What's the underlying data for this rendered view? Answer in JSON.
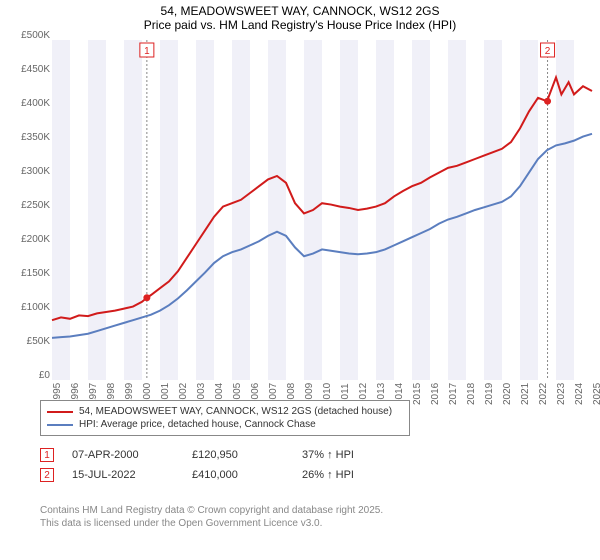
{
  "title": "54, MEADOWSWEET WAY, CANNOCK, WS12 2GS",
  "subtitle": "Price paid vs. HM Land Registry's House Price Index (HPI)",
  "chart": {
    "type": "line",
    "ylim": [
      0,
      500000
    ],
    "ytick_step": 50000,
    "ytick_labels": [
      "£0",
      "£50K",
      "£100K",
      "£150K",
      "£200K",
      "£250K",
      "£300K",
      "£350K",
      "£400K",
      "£450K",
      "£500K"
    ],
    "x_years": [
      1995,
      1996,
      1997,
      1998,
      1999,
      2000,
      2001,
      2002,
      2003,
      2004,
      2005,
      2006,
      2007,
      2008,
      2009,
      2010,
      2011,
      2012,
      2013,
      2014,
      2015,
      2016,
      2017,
      2018,
      2019,
      2020,
      2021,
      2022,
      2023,
      2024,
      2025
    ],
    "background_color": "#ffffff",
    "band_color": "#f0f0f8",
    "series": [
      {
        "name": "property",
        "color": "#d11b1b",
        "width": 2,
        "data": [
          [
            1995,
            88000
          ],
          [
            1995.5,
            92000
          ],
          [
            1996,
            90000
          ],
          [
            1996.5,
            95000
          ],
          [
            1997,
            94000
          ],
          [
            1997.5,
            98000
          ],
          [
            1998,
            100000
          ],
          [
            1998.5,
            102000
          ],
          [
            1999,
            105000
          ],
          [
            1999.5,
            108000
          ],
          [
            2000,
            115000
          ],
          [
            2000.27,
            120950
          ],
          [
            2000.5,
            125000
          ],
          [
            2001,
            135000
          ],
          [
            2001.5,
            145000
          ],
          [
            2002,
            160000
          ],
          [
            2002.5,
            180000
          ],
          [
            2003,
            200000
          ],
          [
            2003.5,
            220000
          ],
          [
            2004,
            240000
          ],
          [
            2004.5,
            255000
          ],
          [
            2005,
            260000
          ],
          [
            2005.5,
            265000
          ],
          [
            2006,
            275000
          ],
          [
            2006.5,
            285000
          ],
          [
            2007,
            295000
          ],
          [
            2007.5,
            300000
          ],
          [
            2008,
            290000
          ],
          [
            2008.5,
            260000
          ],
          [
            2009,
            245000
          ],
          [
            2009.5,
            250000
          ],
          [
            2010,
            260000
          ],
          [
            2010.5,
            258000
          ],
          [
            2011,
            255000
          ],
          [
            2011.5,
            253000
          ],
          [
            2012,
            250000
          ],
          [
            2012.5,
            252000
          ],
          [
            2013,
            255000
          ],
          [
            2013.5,
            260000
          ],
          [
            2014,
            270000
          ],
          [
            2014.5,
            278000
          ],
          [
            2015,
            285000
          ],
          [
            2015.5,
            290000
          ],
          [
            2016,
            298000
          ],
          [
            2016.5,
            305000
          ],
          [
            2017,
            312000
          ],
          [
            2017.5,
            315000
          ],
          [
            2018,
            320000
          ],
          [
            2018.5,
            325000
          ],
          [
            2019,
            330000
          ],
          [
            2019.5,
            335000
          ],
          [
            2020,
            340000
          ],
          [
            2020.5,
            350000
          ],
          [
            2021,
            370000
          ],
          [
            2021.5,
            395000
          ],
          [
            2022,
            415000
          ],
          [
            2022.5,
            410000
          ],
          [
            2023,
            445000
          ],
          [
            2023.3,
            420000
          ],
          [
            2023.7,
            438000
          ],
          [
            2024,
            420000
          ],
          [
            2024.5,
            432000
          ],
          [
            2025,
            425000
          ]
        ]
      },
      {
        "name": "hpi",
        "color": "#5b7ebf",
        "width": 2,
        "data": [
          [
            1995,
            62000
          ],
          [
            1995.5,
            63000
          ],
          [
            1996,
            64000
          ],
          [
            1996.5,
            66000
          ],
          [
            1997,
            68000
          ],
          [
            1997.5,
            72000
          ],
          [
            1998,
            76000
          ],
          [
            1998.5,
            80000
          ],
          [
            1999,
            84000
          ],
          [
            1999.5,
            88000
          ],
          [
            2000,
            92000
          ],
          [
            2000.5,
            96000
          ],
          [
            2001,
            102000
          ],
          [
            2001.5,
            110000
          ],
          [
            2002,
            120000
          ],
          [
            2002.5,
            132000
          ],
          [
            2003,
            145000
          ],
          [
            2003.5,
            158000
          ],
          [
            2004,
            172000
          ],
          [
            2004.5,
            182000
          ],
          [
            2005,
            188000
          ],
          [
            2005.5,
            192000
          ],
          [
            2006,
            198000
          ],
          [
            2006.5,
            204000
          ],
          [
            2007,
            212000
          ],
          [
            2007.5,
            218000
          ],
          [
            2008,
            212000
          ],
          [
            2008.5,
            195000
          ],
          [
            2009,
            182000
          ],
          [
            2009.5,
            186000
          ],
          [
            2010,
            192000
          ],
          [
            2010.5,
            190000
          ],
          [
            2011,
            188000
          ],
          [
            2011.5,
            186000
          ],
          [
            2012,
            185000
          ],
          [
            2012.5,
            186000
          ],
          [
            2013,
            188000
          ],
          [
            2013.5,
            192000
          ],
          [
            2014,
            198000
          ],
          [
            2014.5,
            204000
          ],
          [
            2015,
            210000
          ],
          [
            2015.5,
            216000
          ],
          [
            2016,
            222000
          ],
          [
            2016.5,
            230000
          ],
          [
            2017,
            236000
          ],
          [
            2017.5,
            240000
          ],
          [
            2018,
            245000
          ],
          [
            2018.5,
            250000
          ],
          [
            2019,
            254000
          ],
          [
            2019.5,
            258000
          ],
          [
            2020,
            262000
          ],
          [
            2020.5,
            270000
          ],
          [
            2021,
            285000
          ],
          [
            2021.5,
            305000
          ],
          [
            2022,
            325000
          ],
          [
            2022.5,
            338000
          ],
          [
            2023,
            345000
          ],
          [
            2023.5,
            348000
          ],
          [
            2024,
            352000
          ],
          [
            2024.5,
            358000
          ],
          [
            2025,
            362000
          ]
        ]
      }
    ],
    "markers": [
      {
        "id": "1",
        "x": 2000.27,
        "y": 120950
      },
      {
        "id": "2",
        "x": 2022.53,
        "y": 410000
      }
    ]
  },
  "legend": {
    "items": [
      {
        "color": "#d11b1b",
        "label": "54, MEADOWSWEET WAY, CANNOCK, WS12 2GS (detached house)"
      },
      {
        "color": "#5b7ebf",
        "label": "HPI: Average price, detached house, Cannock Chase"
      }
    ]
  },
  "transactions": [
    {
      "id": "1",
      "date": "07-APR-2000",
      "price": "£120,950",
      "pct": "37% ↑ HPI"
    },
    {
      "id": "2",
      "date": "15-JUL-2022",
      "price": "£410,000",
      "pct": "26% ↑ HPI"
    }
  ],
  "footer": {
    "line1": "Contains HM Land Registry data © Crown copyright and database right 2025.",
    "line2": "This data is licensed under the Open Government Licence v3.0."
  }
}
